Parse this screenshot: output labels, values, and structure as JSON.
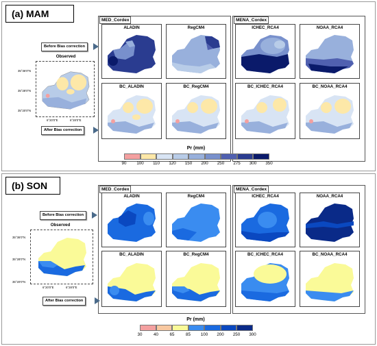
{
  "sections": [
    {
      "label": "(a) MAM",
      "group_titles": [
        "MED_Cordex",
        "MENA_Cordex"
      ],
      "before_label": "Before Bias correction",
      "after_label": "After Bias correction",
      "observed_title": "Observed",
      "y_ticks": [
        "35°36'0\"N",
        "35°28'0\"N",
        "35°20'0\"N"
      ],
      "x_ticks": [
        "6°20'0\"E",
        "6°28'0\"E"
      ],
      "maps_top": [
        "ALADIN",
        "RegCM4",
        "ICHEC_RCA4",
        "NOAA_RCA4"
      ],
      "maps_bottom": [
        "BC_ALADIN",
        "BC_RegCM4",
        "BC_ICHEC_RCA4",
        "BC_NOAA_RCA4"
      ],
      "legend_title": "Pr (mm)",
      "legend_ticks": [
        "90",
        "100",
        "110",
        "120",
        "150",
        "200",
        "250",
        "275",
        "300",
        "350"
      ],
      "legend_colors": [
        "#f4a0a0",
        "#fde8a8",
        "#d8e4f4",
        "#b8cce8",
        "#98b0dc",
        "#7890cc",
        "#5060b0",
        "#2a3c90",
        "#0a1a6a"
      ]
    },
    {
      "label": "(b) SON",
      "group_titles": [
        "MED_Cordex",
        "MENA_Cordex"
      ],
      "before_label": "Before Bias correction",
      "after_label": "After Bias correction",
      "observed_title": "Observed",
      "y_ticks": [
        "35°36'0\"N",
        "35°28'0\"N",
        "35°20'0\"N"
      ],
      "x_ticks": [
        "6°20'0\"E",
        "6°28'0\"E"
      ],
      "maps_top": [
        "ALADIN",
        "RegCM4",
        "ICHEC_RCA4",
        "NOAA_RCA4"
      ],
      "maps_bottom": [
        "BC_ALADIN",
        "BC_RegCM4",
        "BC_ICHEC_RCA4",
        "BC_NOAA_RCA4"
      ],
      "legend_title": "Pr (mm)",
      "legend_ticks": [
        "30",
        "40",
        "65",
        "85",
        "100",
        "200",
        "250",
        "300"
      ],
      "legend_colors": [
        "#f4a0a0",
        "#f8c8a0",
        "#fafa98",
        "#3a8cf0",
        "#1a6ae0",
        "#0a48c0",
        "#0a2a88"
      ]
    }
  ]
}
